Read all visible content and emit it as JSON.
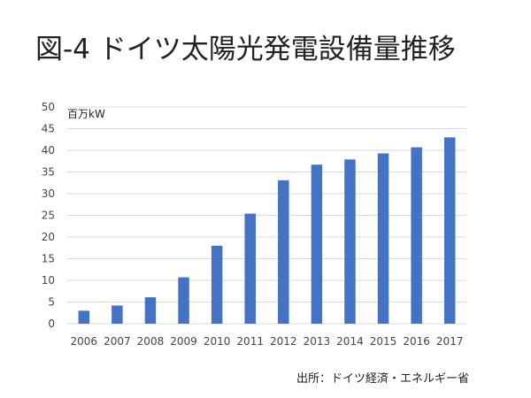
{
  "title": "図-4 ドイツ太陽光発電設備量推移",
  "source": "出所：ドイツ経済・エネルギー省",
  "chart_data": {
    "type": "bar",
    "title": "図-4 ドイツ太陽光発電設備量推移",
    "ylabel": "百万kW",
    "xlabel": "",
    "categories": [
      "2006",
      "2007",
      "2008",
      "2009",
      "2010",
      "2011",
      "2012",
      "2013",
      "2014",
      "2015",
      "2016",
      "2017"
    ],
    "values": [
      3.0,
      4.2,
      6.1,
      10.7,
      18.0,
      25.4,
      33.1,
      36.7,
      37.9,
      39.3,
      40.7,
      43.0
    ],
    "ylim": [
      0,
      50
    ],
    "yticks": [
      0,
      5,
      10,
      15,
      20,
      25,
      30,
      35,
      40,
      45,
      50
    ],
    "grid": true,
    "bar_color": "#4472C4",
    "grid_color": "#D9D9D9"
  }
}
